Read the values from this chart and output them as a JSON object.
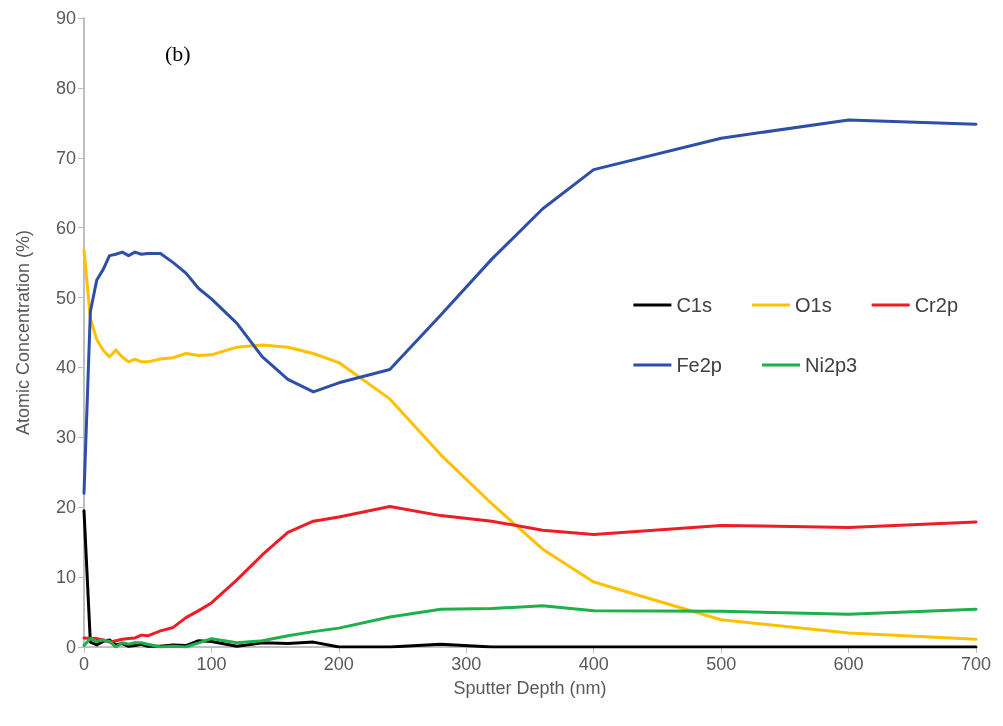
{
  "chart_data": {
    "type": "line",
    "xlabel": "Sputter Depth (nm)",
    "ylabel": "Atomic Concentration (%)",
    "annotations": [
      "(b)"
    ],
    "x": [
      0,
      5,
      10,
      15,
      20,
      25,
      30,
      35,
      40,
      45,
      50,
      60,
      70,
      80,
      90,
      100,
      120,
      140,
      160,
      180,
      200,
      240,
      280,
      320,
      360,
      400,
      500,
      600,
      700
    ],
    "series": [
      {
        "name": "C1s",
        "color": "#000000",
        "values": [
          19.5,
          0.7,
          0.3,
          0.8,
          1,
          0.3,
          0.5,
          0.1,
          0.2,
          0.4,
          0.1,
          0.1,
          0.3,
          0.2,
          0.9,
          0.8,
          0.1,
          0.6,
          0.5,
          0.7,
          0,
          0,
          0.4,
          0,
          0,
          0,
          0,
          0,
          0
        ]
      },
      {
        "name": "O1s",
        "color": "#ffc000",
        "values": [
          56.8,
          47,
          44,
          42.5,
          41.5,
          42.5,
          41.5,
          40.8,
          41.2,
          40.8,
          40.8,
          41.2,
          41.4,
          42,
          41.7,
          41.8,
          42.9,
          43.2,
          42.9,
          42,
          40.7,
          35.5,
          27.5,
          20.5,
          14,
          9.3,
          3.9,
          2,
          1.1
        ]
      },
      {
        "name": "Cr2p",
        "color": "#ee1c25",
        "values": [
          1.3,
          1.2,
          1.2,
          1,
          0.7,
          0.9,
          1.1,
          1.2,
          1.3,
          1.7,
          1.6,
          2.3,
          2.8,
          4.2,
          5.2,
          6.3,
          9.6,
          13.2,
          16.4,
          18,
          18.6,
          20.1,
          18.8,
          18,
          16.7,
          16.1,
          17.4,
          17.1,
          17.9
        ]
      },
      {
        "name": "Fe2p",
        "color": "#2e4fa8",
        "values": [
          22,
          48,
          52.5,
          54,
          56,
          56.2,
          56.5,
          56,
          56.5,
          56.2,
          56.3,
          56.3,
          55,
          53.5,
          51.3,
          49.8,
          46.3,
          41.5,
          38.3,
          36.5,
          37.8,
          39.7,
          47.5,
          55.5,
          62.7,
          68.3,
          72.8,
          75.4,
          74.8
        ]
      },
      {
        "name": "Ni2p3",
        "color": "#1db04b",
        "values": [
          0.2,
          1.2,
          0.8,
          1,
          0.8,
          0,
          0.6,
          0.4,
          0.6,
          0.6,
          0.4,
          0,
          0.1,
          0,
          0.6,
          1.2,
          0.6,
          0.9,
          1.6,
          2.2,
          2.7,
          4.3,
          5.4,
          5.5,
          5.9,
          5.2,
          5.1,
          4.7,
          5.4
        ]
      }
    ],
    "xlim": [
      0,
      700
    ],
    "xticks": [
      0,
      100,
      200,
      300,
      400,
      500,
      600,
      700
    ],
    "ylim": [
      0,
      90
    ],
    "yticks": [
      0,
      10,
      20,
      30,
      40,
      50,
      60,
      70,
      80,
      90
    ],
    "grid": false,
    "legend": "right",
    "marker": "none",
    "line_style": "solid"
  }
}
